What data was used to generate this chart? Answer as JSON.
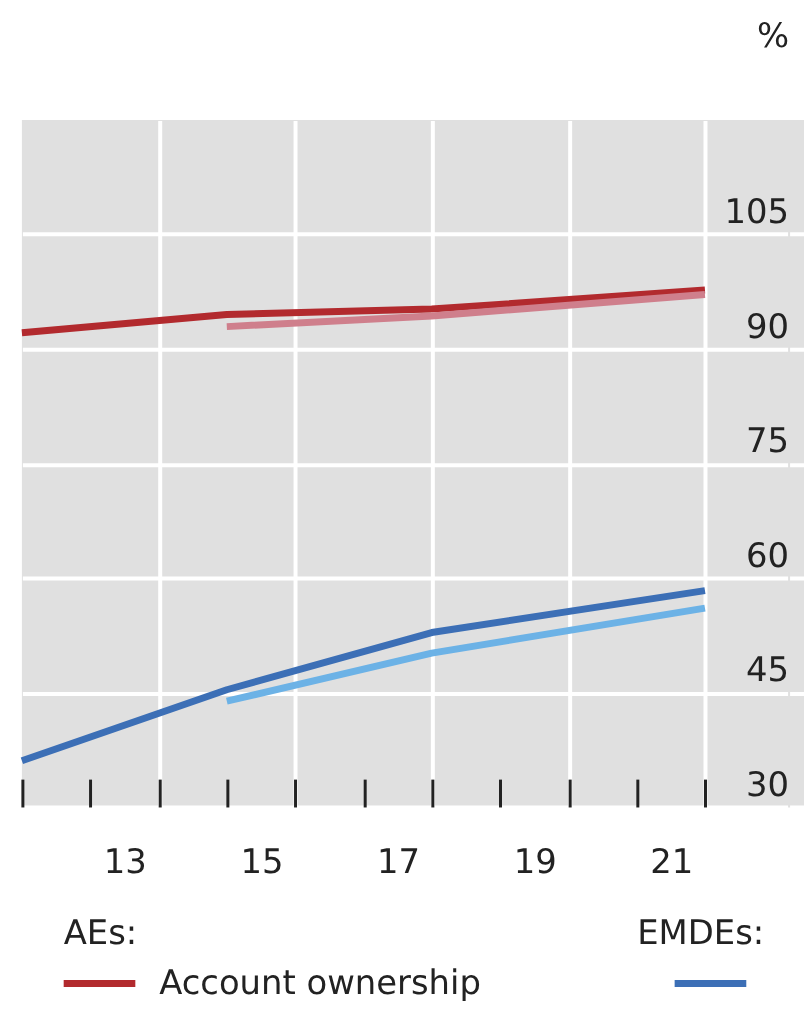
{
  "chart_data": {
    "type": "line",
    "ylabel": "%",
    "x": [
      11,
      14,
      17,
      21
    ],
    "series": [
      {
        "name": "Account ownership",
        "color": "#b22a2e",
        "values": [
          92.1,
          94.5,
          95.2,
          97.7
        ]
      },
      {
        "color": "#cf7f8c",
        "values": [
          null,
          92.9,
          94.3,
          97.1
        ]
      },
      {
        "color": "#3c6fb6",
        "values": [
          36.0,
          45.3,
          52.8,
          58.3
        ]
      },
      {
        "color": "#6cb2e6",
        "values": [
          null,
          43.8,
          50.1,
          56.0
        ]
      }
    ],
    "xlim": [
      11,
      22.45
    ],
    "xticks": [
      {
        "value": 11,
        "label": null
      },
      {
        "value": 12,
        "label": null
      },
      {
        "value": 12.5,
        "label": "13"
      },
      {
        "value": 13,
        "label": null
      },
      {
        "value": 14,
        "label": null
      },
      {
        "value": 14.5,
        "label": "15"
      },
      {
        "value": 15,
        "label": null
      },
      {
        "value": 16,
        "label": null
      },
      {
        "value": 16.5,
        "label": "17"
      },
      {
        "value": 17,
        "label": null
      },
      {
        "value": 18,
        "label": null
      },
      {
        "value": 18.5,
        "label": "19"
      },
      {
        "value": 19,
        "label": null
      },
      {
        "value": 20,
        "label": null
      },
      {
        "value": 20.5,
        "label": "21"
      },
      {
        "value": 21,
        "label": null
      }
    ],
    "ylim": [
      30,
      120
    ],
    "yticks": [
      30,
      45,
      60,
      75,
      90,
      105
    ],
    "grid": true,
    "legend": "bottom",
    "annotations": [
      "AEs:",
      "EMDEs:"
    ],
    "line_style": "solid",
    "marker": "none"
  }
}
